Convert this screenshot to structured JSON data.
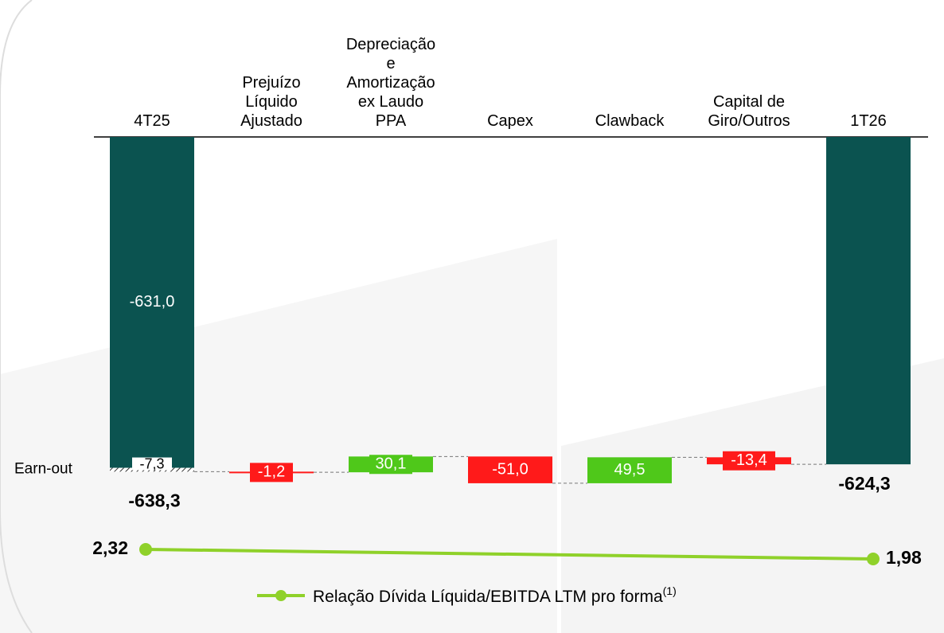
{
  "chart_data": {
    "type": "waterfall",
    "categories": [
      "4T25",
      "Prejuízo Líquido Ajustado",
      "Depreciação e Amortização ex Laudo PPA",
      "Capex",
      "Clawback",
      "Capital de Giro/Outros",
      "1T26"
    ],
    "ylim": [
      -700,
      0
    ],
    "opening": {
      "values": [
        -631.0,
        -7.3
      ],
      "value_labels": [
        "-631,0",
        "-7,3"
      ],
      "total": -638.3,
      "total_label": "-638,3",
      "color": "#0b5350",
      "earnout_label": "Earn-out"
    },
    "steps": {
      "values": [
        -1.2,
        30.1,
        -51.0,
        49.5,
        -13.4
      ],
      "value_labels": [
        "-1,2",
        "30,1",
        "-51,0",
        "49,5",
        "-13,4"
      ],
      "increase_color": "#4fc81a",
      "decrease_color": "#ff1a1a"
    },
    "closing": {
      "value": -624.3,
      "value_label": "-624,3",
      "color": "#0b5350"
    },
    "line": {
      "name": "Relação Dívida Líquida/EBITDA LTM pro forma",
      "footnote_mark": "(1)",
      "color": "#8fd12a",
      "values": [
        2.32,
        1.98
      ],
      "value_labels": [
        "2,32",
        "1,98"
      ]
    }
  }
}
